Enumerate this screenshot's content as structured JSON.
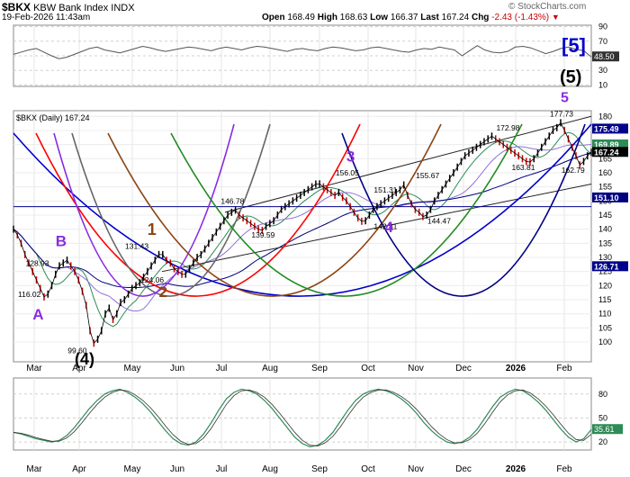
{
  "header": {
    "symbol": "$BKX",
    "name": "KBW Bank Index",
    "exchange": "INDX",
    "date": "19-Feb-2026 11:43am",
    "open_label": "Open",
    "open": "168.49",
    "high_label": "High",
    "high": "168.63",
    "low_label": "Low",
    "low": "166.37",
    "last_label": "Last",
    "last": "167.24",
    "chg_label": "Chg",
    "chg": "-2.43 (-1.43%)",
    "chg_arrow": "▼",
    "watermark": "© StockCharts.com"
  },
  "colors": {
    "price_up": "#000000",
    "price_down": "#cc0000",
    "ma_blue": "#000080",
    "ma_green": "#2e8b57",
    "ma_purple": "#9370db",
    "wave_purple": "#8a2be2",
    "wave_brown": "#8b4513",
    "wave_blue": "#0000cc",
    "arc_red": "#ff0000",
    "arc_green": "#228b22",
    "arc_gray": "#666666"
  },
  "chart_data": [
    {
      "type": "line",
      "panel": "top indicator",
      "ylim": [
        8,
        92
      ],
      "ticks": [
        10,
        30,
        50,
        70,
        90
      ],
      "tick_labels": [
        "10",
        "30",
        "50",
        "70",
        "90"
      ],
      "last_value": "48.50",
      "annotations": [
        "[5]",
        "(5)"
      ],
      "values": [
        52,
        55,
        58,
        60,
        55,
        50,
        46,
        48,
        52,
        56,
        60,
        62,
        58,
        56,
        54,
        57,
        60,
        63,
        61,
        58,
        56,
        58,
        60,
        62,
        61,
        59,
        57,
        60,
        62,
        60,
        58,
        61,
        63,
        62,
        60,
        58,
        56,
        59,
        60,
        58,
        57,
        60,
        62,
        61,
        59,
        57,
        58,
        61,
        62,
        60,
        58,
        56,
        55,
        58,
        60,
        59,
        62,
        60,
        58,
        50,
        57,
        64,
        58,
        55,
        54,
        56,
        62,
        63,
        61,
        57,
        53,
        56,
        60,
        62,
        59,
        57,
        48.5
      ]
    },
    {
      "type": "line",
      "panel": "main price",
      "title": "$BKX (Daily) 167.24",
      "ylim": [
        93,
        182
      ],
      "ticks": [
        100,
        105,
        110,
        115,
        120,
        125,
        130,
        135,
        140,
        145,
        150,
        155,
        160,
        165,
        170,
        175,
        180
      ],
      "tick_labels": [
        "100",
        "105",
        "110",
        "115",
        "120",
        "125",
        "130",
        "135",
        "140",
        "145",
        "150",
        "155",
        "160",
        "165",
        "170",
        "175",
        "180"
      ],
      "x_ticks": [
        "Mar",
        "Apr",
        "May",
        "Jun",
        "Jul",
        "Aug",
        "Sep",
        "Oct",
        "Nov",
        "Dec",
        "2026",
        "Feb"
      ],
      "axis_values": [
        "175.49",
        "169.89",
        "167.24",
        "151.10",
        "126.71"
      ],
      "price_labels": [
        {
          "text": "128.93",
          "x": 12,
          "y": 127
        },
        {
          "text": "116.02",
          "x": 7,
          "y": 116
        },
        {
          "text": "99.60",
          "x": 31,
          "y": 96
        },
        {
          "text": "131.43",
          "x": 59,
          "y": 133
        },
        {
          "text": "124.06",
          "x": 66,
          "y": 121
        },
        {
          "text": "146.78",
          "x": 105,
          "y": 149
        },
        {
          "text": "139.59",
          "x": 120,
          "y": 137
        },
        {
          "text": "156.05",
          "x": 162,
          "y": 159
        },
        {
          "text": "151.31",
          "x": 180,
          "y": 153
        },
        {
          "text": "142.81",
          "x": 180,
          "y": 140
        },
        {
          "text": "155.67",
          "x": 201,
          "y": 158
        },
        {
          "text": "144.47",
          "x": 206,
          "y": 142
        },
        {
          "text": "172.98",
          "x": 240,
          "y": 175
        },
        {
          "text": "163.81",
          "x": 247,
          "y": 161
        },
        {
          "text": "177.73",
          "x": 266,
          "y": 180
        },
        {
          "text": "162.79",
          "x": 270,
          "y": 160
        }
      ],
      "wave_labels": [
        {
          "text": "A",
          "x": 10,
          "y": 108,
          "color": "#8a2be2",
          "size": 17
        },
        {
          "text": "B",
          "x": 21,
          "y": 134,
          "color": "#8a2be2",
          "size": 17
        },
        {
          "text": "(4)",
          "x": 29,
          "y": 92,
          "color": "#000000",
          "size": 18
        },
        {
          "text": "1",
          "x": 64,
          "y": 138,
          "color": "#8b4513",
          "size": 18
        },
        {
          "text": "2",
          "x": 71,
          "y": 116,
          "color": "#8b4513",
          "size": 17
        },
        {
          "text": "3",
          "x": 162,
          "y": 164,
          "color": "#8a2be2",
          "size": 17
        },
        {
          "text": "4",
          "x": 180,
          "y": 139,
          "color": "#8a2be2",
          "size": 17
        },
        {
          "text": "5",
          "x": 265,
          "y": 185,
          "color": "#8a2be2",
          "size": 16
        }
      ],
      "series": [
        {
          "name": "price",
          "values": [
            140,
            138,
            135,
            131,
            128,
            125,
            122,
            119,
            116,
            117,
            120,
            124,
            127,
            128,
            129,
            127,
            125,
            122,
            118,
            113,
            104,
            99.6,
            101,
            104,
            110,
            112,
            108,
            110,
            114,
            115,
            117,
            119,
            120,
            121,
            123,
            125,
            127,
            129,
            131,
            131,
            129,
            128,
            126,
            125,
            124,
            124.06,
            126,
            128,
            130,
            131,
            133,
            135,
            137,
            139,
            141,
            143,
            145,
            146,
            146.78,
            145,
            144,
            143,
            142,
            141,
            140,
            139.59,
            141,
            142,
            143,
            145,
            147,
            148,
            149,
            150,
            151,
            152,
            153,
            154,
            155,
            156,
            156.05,
            155,
            154,
            153,
            152,
            153,
            151.31,
            150,
            148,
            146,
            144,
            142.81,
            143,
            145,
            147,
            148,
            149,
            150,
            151,
            152,
            153,
            154,
            155.67,
            152,
            149,
            147,
            146,
            144.47,
            145,
            147,
            150,
            152,
            154,
            156,
            158,
            160,
            162,
            164,
            166,
            167,
            168,
            169,
            170,
            171,
            172,
            172.98,
            172,
            171,
            170,
            169,
            168,
            167,
            166,
            165,
            164,
            163.81,
            165,
            167,
            169,
            171,
            173,
            175,
            176,
            177.73,
            175,
            172,
            169,
            166,
            162.79,
            164,
            166,
            167.24
          ]
        }
      ]
    },
    {
      "type": "line",
      "panel": "bottom oscillator",
      "ylim": [
        10,
        100
      ],
      "ticks": [
        20,
        50,
        80
      ],
      "tick_labels": [
        "20",
        "50",
        "80"
      ],
      "last_value": "35.61",
      "values": [
        32,
        30,
        27,
        24,
        22,
        20,
        22,
        28,
        38,
        50,
        62,
        72,
        80,
        84,
        86,
        82,
        76,
        68,
        58,
        46,
        34,
        24,
        18,
        16,
        20,
        30,
        44,
        60,
        74,
        82,
        86,
        84,
        80,
        72,
        62,
        50,
        38,
        26,
        18,
        14,
        16,
        22,
        32,
        46,
        60,
        72,
        80,
        84,
        86,
        84,
        80,
        74,
        66,
        56,
        44,
        34,
        26,
        20,
        18,
        20,
        26,
        36,
        50,
        64,
        76,
        82,
        86,
        84,
        78,
        70,
        60,
        48,
        36,
        26,
        20,
        24,
        35.61
      ]
    }
  ]
}
